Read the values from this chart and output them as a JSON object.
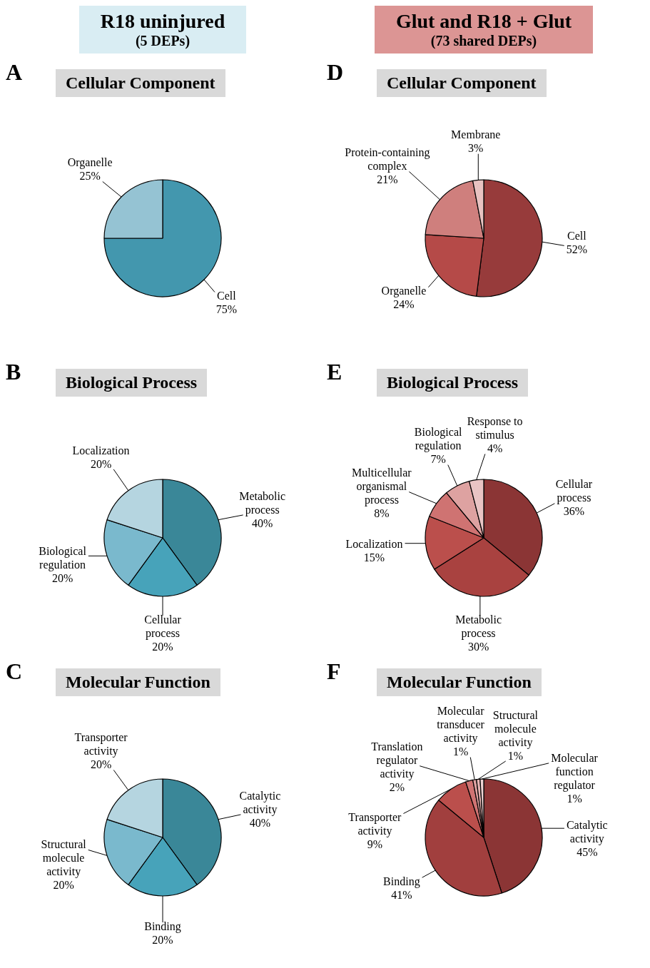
{
  "chart_data": [
    {
      "type": "pie",
      "title": "Cellular Component",
      "annotations": [
        "A",
        "R18 uninjured",
        "(5 DEPs)"
      ],
      "categories": [
        "Cell",
        "Organelle"
      ],
      "values": [
        75,
        25
      ],
      "value_labels": [
        "75%",
        "25%"
      ],
      "colors": [
        "#4397ae",
        "#95c3d3"
      ]
    },
    {
      "type": "pie",
      "title": "Biological Process",
      "annotations": [
        "B"
      ],
      "categories": [
        "Metabolic process",
        "Cellular process",
        "Biological regulation",
        "Localization"
      ],
      "values": [
        40,
        20,
        20,
        20
      ],
      "value_labels": [
        "40%",
        "20%",
        "20%",
        "20%"
      ],
      "colors": [
        "#3a8798",
        "#47a3ba",
        "#7ab9cd",
        "#b5d5e0"
      ]
    },
    {
      "type": "pie",
      "title": "Molecular Function",
      "annotations": [
        "C"
      ],
      "categories": [
        "Catalytic activity",
        "Binding",
        "Structural molecule activity",
        "Transporter activity"
      ],
      "values": [
        40,
        20,
        20,
        20
      ],
      "value_labels": [
        "40%",
        "20%",
        "20%",
        "20%"
      ],
      "colors": [
        "#3a8798",
        "#47a3ba",
        "#7ab9cd",
        "#b5d5e0"
      ]
    },
    {
      "type": "pie",
      "title": "Cellular Component",
      "annotations": [
        "D",
        "Glut and R18 + Glut",
        "(73 shared DEPs)"
      ],
      "categories": [
        "Cell",
        "Organelle",
        "Protein-containing complex",
        "Membrane"
      ],
      "values": [
        52,
        24,
        21,
        3
      ],
      "value_labels": [
        "52%",
        "24%",
        "21%",
        "3%"
      ],
      "colors": [
        "#973b3b",
        "#b54a48",
        "#cf7f7d",
        "#e8c2c1"
      ]
    },
    {
      "type": "pie",
      "title": "Biological Process",
      "annotations": [
        "E"
      ],
      "categories": [
        "Cellular process",
        "Metabolic process",
        "Localization",
        "Multicellular organismal process",
        "Biological regulation",
        "Response to stimulus"
      ],
      "values": [
        36,
        30,
        15,
        8,
        7,
        4
      ],
      "value_labels": [
        "36%",
        "30%",
        "15%",
        "8%",
        "7%",
        "4%"
      ],
      "colors": [
        "#8b3535",
        "#a94240",
        "#bb4f4c",
        "#cf7372",
        "#dea2a1",
        "#e9c4c4"
      ]
    },
    {
      "type": "pie",
      "title": "Molecular Function",
      "annotations": [
        "F"
      ],
      "categories": [
        "Catalytic activity",
        "Binding",
        "Transporter activity",
        "Translation regulator activity",
        "Molecular transducer activity",
        "Structural molecule activity",
        "Molecular function regulator"
      ],
      "values": [
        45,
        41,
        9,
        2,
        1,
        1,
        1
      ],
      "value_labels": [
        "45%",
        "41%",
        "9%",
        "2%",
        "1%",
        "1%",
        "1%"
      ],
      "colors": [
        "#8b3535",
        "#a13f3e",
        "#bb4f4c",
        "#cf7372",
        "#dea2a1",
        "#e5b5b4",
        "#efd3d3"
      ]
    }
  ]
}
